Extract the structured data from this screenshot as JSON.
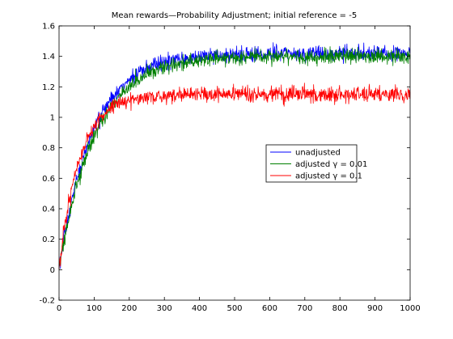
{
  "chart_data": {
    "type": "line",
    "title": "Mean rewards—Probability Adjustment; initial reference = -5",
    "xlabel": "",
    "ylabel": "",
    "xlim": [
      0,
      1000
    ],
    "ylim": [
      -0.2,
      1.6
    ],
    "x_ticks": [
      "0",
      "100",
      "200",
      "300",
      "400",
      "500",
      "600",
      "700",
      "800",
      "900",
      "1000"
    ],
    "y_ticks": [
      "-0.2",
      "0",
      "0.2",
      "0.4",
      "0.6",
      "0.8",
      "1",
      "1.2",
      "1.4",
      "1.6"
    ],
    "grid": false,
    "legend_position": "center-right",
    "series": [
      {
        "name": "unadjusted",
        "color": "#0000ff",
        "asymptote": 1.42,
        "rate": 0.0105,
        "noise": 0.026,
        "x": [
          0,
          25,
          50,
          75,
          100,
          150,
          200,
          250,
          300,
          400,
          500,
          600,
          700,
          800,
          900,
          1000
        ],
        "y": [
          0,
          0.35,
          0.62,
          0.82,
          0.95,
          1.12,
          1.22,
          1.28,
          1.32,
          1.36,
          1.38,
          1.4,
          1.41,
          1.42,
          1.42,
          1.42
        ]
      },
      {
        "name": "adjusted  γ = 0.01",
        "color": "#008000",
        "asymptote": 1.4,
        "rate": 0.0098,
        "noise": 0.024,
        "x": [
          0,
          25,
          50,
          75,
          100,
          150,
          200,
          250,
          300,
          400,
          500,
          600,
          700,
          800,
          900,
          1000
        ],
        "y": [
          0,
          0.34,
          0.6,
          0.8,
          0.93,
          1.1,
          1.2,
          1.26,
          1.3,
          1.34,
          1.36,
          1.38,
          1.39,
          1.4,
          1.4,
          1.4
        ]
      },
      {
        "name": "adjusted  γ = 0.1",
        "color": "#ff0000",
        "asymptote": 1.15,
        "rate": 0.017,
        "noise": 0.025,
        "x": [
          0,
          25,
          50,
          75,
          100,
          150,
          200,
          250,
          300,
          400,
          500,
          600,
          700,
          800,
          900,
          1000
        ],
        "y": [
          0,
          0.4,
          0.7,
          0.88,
          0.97,
          1.04,
          1.08,
          1.1,
          1.11,
          1.12,
          1.13,
          1.14,
          1.14,
          1.15,
          1.15,
          1.15
        ]
      }
    ]
  }
}
